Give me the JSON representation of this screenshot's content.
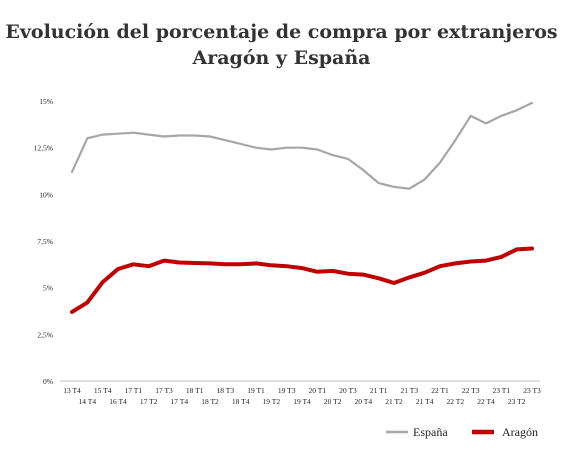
{
  "chart_data": {
    "type": "line",
    "title_line1": "Evolución del porcentaje de compra por extranjeros",
    "title_line2": "Aragón y España",
    "xlabel": "",
    "ylabel": "",
    "ylim": [
      0,
      15
    ],
    "y_ticks": [
      {
        "value": 0,
        "label": "0%"
      },
      {
        "value": 2.5,
        "label": "2,5%"
      },
      {
        "value": 5,
        "label": "5%"
      },
      {
        "value": 7.5,
        "label": "7,5%"
      },
      {
        "value": 10,
        "label": "10%"
      },
      {
        "value": 12.5,
        "label": "12,5%"
      },
      {
        "value": 15,
        "label": "15%"
      }
    ],
    "grid": false,
    "legend_position": "bottom-right",
    "categories": [
      "13 T4",
      "14 T4",
      "15 T4",
      "16 T4",
      "17 T1",
      "17 T2",
      "17 T3",
      "17 T4",
      "18 T1",
      "18 T2",
      "18 T3",
      "18 T4",
      "19 T1",
      "19 T2",
      "19 T3",
      "19 T4",
      "20 T1",
      "20 T2",
      "20 T3",
      "20 T4",
      "21 T1",
      "21 T2",
      "21 T3",
      "21 T4",
      "22 T1",
      "22 T2",
      "22 T3",
      "22 T4",
      "23 T1",
      "23 T2",
      "23 T3"
    ],
    "series": [
      {
        "name": "España",
        "color": "#a6a6a6",
        "values": [
          11.2,
          13.0,
          13.2,
          13.25,
          13.3,
          13.2,
          13.1,
          13.15,
          13.15,
          13.1,
          12.9,
          12.7,
          12.5,
          12.4,
          12.5,
          12.5,
          12.4,
          12.1,
          11.9,
          11.3,
          10.6,
          10.4,
          10.3,
          10.8,
          11.7,
          12.9,
          14.2,
          13.8,
          14.2,
          14.5,
          14.9
        ]
      },
      {
        "name": "Aragón",
        "color": "#c00000",
        "values": [
          3.7,
          4.2,
          5.3,
          6.0,
          6.25,
          6.15,
          6.45,
          6.35,
          6.32,
          6.3,
          6.25,
          6.25,
          6.3,
          6.2,
          6.15,
          6.05,
          5.85,
          5.9,
          5.75,
          5.7,
          5.5,
          5.25,
          5.55,
          5.8,
          6.15,
          6.3,
          6.4,
          6.45,
          6.65,
          7.05,
          7.1
        ]
      }
    ]
  }
}
